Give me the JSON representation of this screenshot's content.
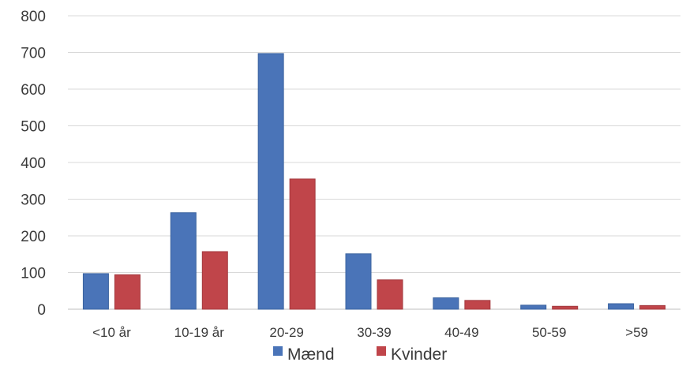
{
  "chart_data": {
    "type": "bar",
    "categories": [
      "<10 år",
      "10-19 år",
      "20-29",
      "30-39",
      "40-49",
      "50-59",
      ">59"
    ],
    "series": [
      {
        "name": "Mænd",
        "values": [
          97,
          263,
          697,
          151,
          31,
          11,
          15
        ],
        "color": "#4a74b8"
      },
      {
        "name": "Kvinder",
        "values": [
          94,
          157,
          355,
          80,
          24,
          8,
          10
        ],
        "color": "#c0454a"
      }
    ],
    "title": "",
    "xlabel": "",
    "ylabel": "",
    "ylim": [
      0,
      800
    ],
    "yticks": [
      0,
      100,
      200,
      300,
      400,
      500,
      600,
      700,
      800
    ],
    "grid": true,
    "legend_position": "bottom"
  }
}
